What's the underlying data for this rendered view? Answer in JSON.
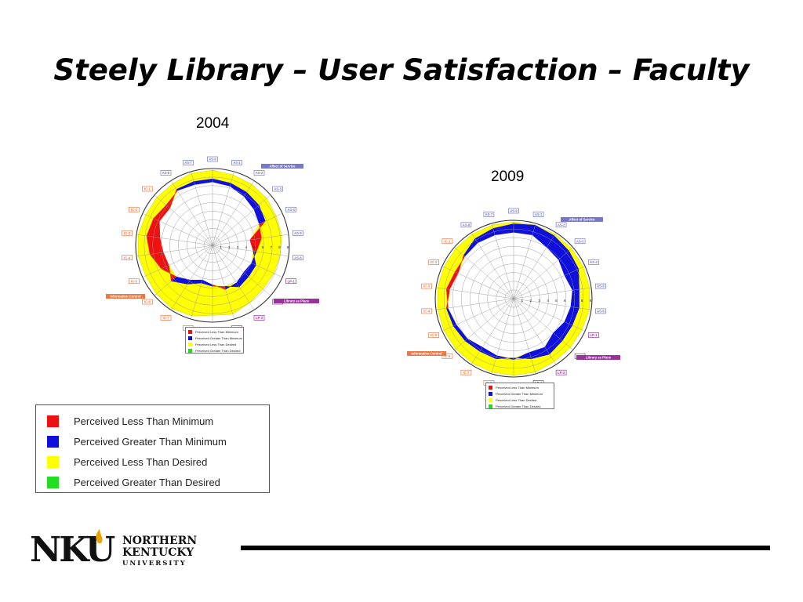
{
  "slide": {
    "title": "Steely Library – User Satisfaction – Faculty",
    "year_2004": "2004",
    "year_2009": "2009"
  },
  "legend": {
    "items": [
      {
        "label": "Perceived Less Than Minimum",
        "color": "#ee1111"
      },
      {
        "label": "Perceived Greater Than Minimum",
        "color": "#1010dd"
      },
      {
        "label": "Perceived Less Than Desired",
        "color": "#ffff00"
      },
      {
        "label": "Perceived Greater Than Desired",
        "color": "#22dd22"
      }
    ]
  },
  "logo": {
    "mark": "NKU",
    "line1": "NORTHERN",
    "line2": "KENTUCKY",
    "line3": "UNIVERSITY"
  },
  "colors": {
    "affect": "#7777cc",
    "library": "#993399",
    "info": "#ee7744",
    "red": "#ee1111",
    "blue": "#1010dd",
    "yellow": "#ffff00",
    "green": "#22dd22"
  },
  "chart_data": [
    {
      "type": "radar",
      "year": "2004",
      "dimensions": [
        "AS-9",
        "AS-1",
        "AS-2",
        "AS-3",
        "AS-4",
        "AS-5",
        "AS-6",
        "LP-1",
        "LP-2",
        "LP-3",
        "LP-4",
        "LP-5",
        "IC-8",
        "IC-7",
        "IC-6",
        "IC-5",
        "IC-4",
        "IC-3",
        "IC-2",
        "IC-1",
        "AS-8",
        "AS-7"
      ],
      "group_labels": [
        "Affect of Service",
        "Library as Place",
        "Information Control"
      ],
      "scale_labels": [
        "1",
        "2",
        "3",
        "4",
        "5",
        "6",
        "7",
        "8",
        "9"
      ],
      "minimum": [
        7.4,
        7.2,
        6.8,
        6.4,
        6.0,
        5.8,
        5.2,
        5.0,
        4.8,
        5.2,
        5.4,
        4.6,
        4.2,
        4.8,
        5.6,
        6.6,
        7.4,
        7.8,
        7.6,
        7.2,
        7.6,
        7.4
      ],
      "perceived": [
        7.8,
        7.6,
        7.4,
        7.2,
        6.8,
        4.4,
        4.8,
        5.6,
        5.6,
        5.8,
        5.0,
        4.8,
        4.6,
        5.4,
        6.4,
        5.6,
        5.8,
        6.2,
        6.8,
        6.6,
        7.8,
        7.8
      ],
      "desired": [
        8.8,
        8.6,
        8.5,
        8.4,
        8.2,
        8.2,
        8.0,
        7.9,
        7.8,
        8.0,
        8.4,
        8.2,
        8.6,
        8.8,
        8.7,
        8.6,
        8.8,
        8.8,
        8.6,
        8.6,
        8.6,
        8.8
      ],
      "legend": [
        "Perceived Less Than Minimum",
        "Perceived Greater Than Minimum",
        "Perceived Less Than Desired",
        "Perceived Greater Than Desired"
      ]
    },
    {
      "type": "radar",
      "year": "2009",
      "dimensions": [
        "AS-9",
        "AS-1",
        "AS-2",
        "AS-3",
        "AS-4",
        "AS-5",
        "AS-6",
        "LP-1",
        "LP-2",
        "LP-3",
        "LP-4",
        "LP-5",
        "IC-8",
        "IC-7",
        "IC-6",
        "IC-5",
        "IC-4",
        "IC-3",
        "IC-2",
        "IC-1",
        "AS-8",
        "AS-7"
      ],
      "group_labels": [
        "Affect of Service",
        "Library as Place",
        "Information Control"
      ],
      "scale_labels": [
        "1",
        "2",
        "3",
        "4",
        "5",
        "6",
        "7",
        "8",
        "9"
      ],
      "minimum": [
        7.6,
        7.6,
        7.0,
        6.8,
        6.4,
        6.8,
        6.6,
        6.4,
        6.0,
        6.6,
        6.4,
        7.0,
        6.8,
        6.6,
        7.0,
        7.2,
        7.6,
        7.8,
        7.4,
        7.4,
        7.6,
        7.6
      ],
      "perceived": [
        8.6,
        8.8,
        8.6,
        8.4,
        8.2,
        7.6,
        7.6,
        7.4,
        7.4,
        7.6,
        7.2,
        6.8,
        7.2,
        7.2,
        7.4,
        7.6,
        7.8,
        7.4,
        7.0,
        7.6,
        8.2,
        8.4
      ],
      "desired": [
        8.8,
        8.8,
        8.8,
        8.8,
        8.8,
        8.8,
        8.8,
        8.6,
        8.6,
        8.6,
        8.8,
        8.8,
        8.8,
        8.8,
        8.8,
        8.8,
        8.8,
        8.8,
        8.8,
        8.8,
        8.8,
        8.8
      ],
      "legend": [
        "Perceived Less Than Minimum",
        "Perceived Greater Than Minimum",
        "Perceived Less Than Desired",
        "Perceived Greater Than Desired"
      ]
    }
  ]
}
